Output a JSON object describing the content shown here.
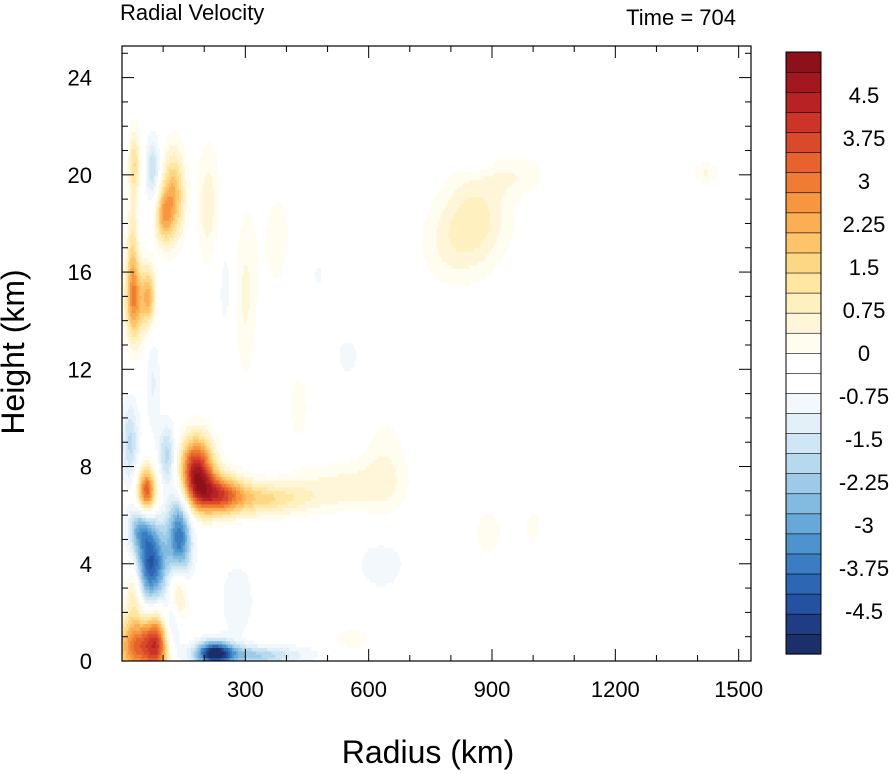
{
  "chart_data": {
    "type": "heatmap",
    "title_left": "Radial Velocity",
    "title_right": "Time = 704",
    "xlabel": "Radius (km)",
    "ylabel": "Height (km)",
    "xlim": [
      0,
      1530
    ],
    "ylim": [
      0,
      25.3
    ],
    "xticks": [
      300,
      600,
      900,
      1200,
      1500
    ],
    "xtick_labels": [
      "300",
      "600",
      "900",
      "1200",
      "1500"
    ],
    "yticks": [
      0,
      4,
      8,
      12,
      16,
      20,
      24
    ],
    "ytick_labels": [
      "0",
      "4",
      "8",
      "12",
      "16",
      "20",
      "24"
    ],
    "colorbar": {
      "min": -5.25,
      "max": 5.25,
      "step": 0.375,
      "labels": [
        {
          "value": 4.5,
          "text": "4.5"
        },
        {
          "value": 3.75,
          "text": "3.75"
        },
        {
          "value": 3,
          "text": "3"
        },
        {
          "value": 2.25,
          "text": "2.25"
        },
        {
          "value": 1.5,
          "text": "1.5"
        },
        {
          "value": 0.75,
          "text": "0.75"
        },
        {
          "value": 0,
          "text": "0"
        },
        {
          "value": -0.75,
          "text": "-0.75"
        },
        {
          "value": -1.5,
          "text": "-1.5"
        },
        {
          "value": -2.25,
          "text": "-2.25"
        },
        {
          "value": -3,
          "text": "-3"
        },
        {
          "value": -3.75,
          "text": "-3.75"
        },
        {
          "value": -4.5,
          "text": "-4.5"
        }
      ],
      "colors": [
        "#1b2f6a",
        "#203d84",
        "#2552a0",
        "#2d67b4",
        "#3a7dc2",
        "#4d93cd",
        "#66a8d7",
        "#82bbe0",
        "#9dcbe7",
        "#b7d9ee",
        "#cfe6f4",
        "#e3f0f8",
        "#f2f8fc",
        "#ffffff",
        "#ffffff",
        "#fffcf0",
        "#fff6d9",
        "#fff0bf",
        "#ffe6a1",
        "#fed785",
        "#fdc46a",
        "#fbae52",
        "#f7963f",
        "#f07c33",
        "#e7632d",
        "#da4a2a",
        "#cb3427",
        "#b82224",
        "#a31820",
        "#8c111a"
      ]
    },
    "features": [
      {
        "r": 40,
        "z": 0.6,
        "sr": 40,
        "sz": 0.9,
        "v": 3.8
      },
      {
        "r": 90,
        "z": 0.8,
        "sr": 22,
        "sz": 1.0,
        "v": 3.2
      },
      {
        "r": 135,
        "z": 2.8,
        "sr": 18,
        "sz": 1.0,
        "v": 3.0
      },
      {
        "r": 30,
        "z": 3.0,
        "sr": 15,
        "sz": 0.9,
        "v": 1.8
      },
      {
        "r": 60,
        "z": 7.0,
        "sr": 16,
        "sz": 0.7,
        "v": 4.2
      },
      {
        "r": 180,
        "z": 7.8,
        "sr": 30,
        "sz": 1.0,
        "v": 5.2
      },
      {
        "r": 235,
        "z": 6.9,
        "sr": 40,
        "sz": 0.6,
        "v": 3.2
      },
      {
        "r": 330,
        "z": 6.7,
        "sr": 90,
        "sz": 0.5,
        "v": 2.0
      },
      {
        "r": 540,
        "z": 7.2,
        "sr": 80,
        "sz": 0.7,
        "v": 0.9
      },
      {
        "r": 640,
        "z": 8.0,
        "sr": 40,
        "sz": 1.5,
        "v": 0.7
      },
      {
        "r": 70,
        "z": 4.0,
        "sr": 28,
        "sz": 1.2,
        "v": -4.2
      },
      {
        "r": 140,
        "z": 5.0,
        "sr": 20,
        "sz": 1.5,
        "v": -3.8
      },
      {
        "r": 120,
        "z": 1.5,
        "sr": 18,
        "sz": 0.9,
        "v": -2.5
      },
      {
        "r": 45,
        "z": 5.5,
        "sr": 20,
        "sz": 0.6,
        "v": -2.0
      },
      {
        "r": 20,
        "z": 9.0,
        "sr": 15,
        "sz": 1.2,
        "v": -1.6
      },
      {
        "r": 110,
        "z": 8.5,
        "sr": 15,
        "sz": 0.9,
        "v": -1.8
      },
      {
        "r": 225,
        "z": 0.35,
        "sr": 30,
        "sz": 0.35,
        "v": -4.5
      },
      {
        "r": 310,
        "z": 0.25,
        "sr": 90,
        "sz": 0.3,
        "v": -2.0
      },
      {
        "r": 280,
        "z": 2.5,
        "sr": 30,
        "sz": 1.2,
        "v": -0.7
      },
      {
        "r": 630,
        "z": 4.0,
        "sr": 50,
        "sz": 0.9,
        "v": -0.6
      },
      {
        "r": 30,
        "z": 14.8,
        "sr": 16,
        "sz": 1.2,
        "v": 3.0
      },
      {
        "r": 65,
        "z": 15.0,
        "sr": 12,
        "sz": 0.9,
        "v": 2.6
      },
      {
        "r": 25,
        "z": 17.0,
        "sr": 10,
        "sz": 1.5,
        "v": 1.5
      },
      {
        "r": 30,
        "z": 20.5,
        "sr": 10,
        "sz": 1.0,
        "v": 1.8
      },
      {
        "r": 125,
        "z": 19.2,
        "sr": 20,
        "sz": 1.3,
        "v": 2.6
      },
      {
        "r": 100,
        "z": 18.3,
        "sr": 15,
        "sz": 0.8,
        "v": 2.1
      },
      {
        "r": 75,
        "z": 20.2,
        "sr": 12,
        "sz": 1.0,
        "v": -1.5
      },
      {
        "r": 75,
        "z": 11.5,
        "sr": 12,
        "sz": 1.5,
        "v": -0.8
      },
      {
        "r": 210,
        "z": 18.8,
        "sr": 20,
        "sz": 1.8,
        "v": 1.0
      },
      {
        "r": 300,
        "z": 15.0,
        "sr": 18,
        "sz": 2.5,
        "v": 0.8
      },
      {
        "r": 380,
        "z": 17.2,
        "sr": 40,
        "sz": 2.2,
        "v": 0.5
      },
      {
        "r": 470,
        "z": 16.0,
        "sr": 40,
        "sz": 1.5,
        "v": -0.4
      },
      {
        "r": 860,
        "z": 18.3,
        "sr": 60,
        "sz": 1.4,
        "v": 1.2
      },
      {
        "r": 800,
        "z": 17.0,
        "sr": 60,
        "sz": 1.2,
        "v": 0.6
      },
      {
        "r": 960,
        "z": 20.0,
        "sr": 60,
        "sz": 0.6,
        "v": 0.6
      },
      {
        "r": 860,
        "z": 20.6,
        "sr": 30,
        "sz": 0.4,
        "v": -0.6
      },
      {
        "r": 1420,
        "z": 20.1,
        "sr": 25,
        "sz": 0.3,
        "v": 0.8
      },
      {
        "r": 430,
        "z": 10.5,
        "sr": 25,
        "sz": 1.5,
        "v": 0.5
      },
      {
        "r": 890,
        "z": 5.3,
        "sr": 25,
        "sz": 0.8,
        "v": 0.6
      },
      {
        "r": 1000,
        "z": 5.5,
        "sr": 40,
        "sz": 1.5,
        "v": 0.4
      },
      {
        "r": 360,
        "z": 0.9,
        "sr": 30,
        "sz": 0.3,
        "v": 0.4
      },
      {
        "r": 560,
        "z": 0.9,
        "sr": 30,
        "sz": 0.3,
        "v": 0.7
      },
      {
        "r": 250,
        "z": 15.5,
        "sr": 15,
        "sz": 2.0,
        "v": -0.5
      },
      {
        "r": 550,
        "z": 12.5,
        "sr": 50,
        "sz": 1.5,
        "v": -0.4
      }
    ]
  }
}
